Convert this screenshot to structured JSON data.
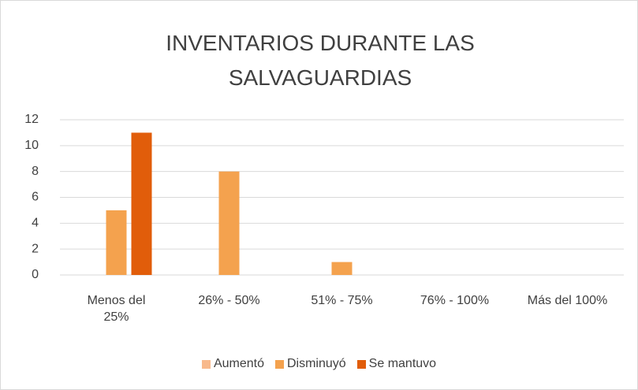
{
  "chart_data": {
    "type": "bar",
    "title": "INVENTARIOS DURANTE LAS SALVAGUARDIAS",
    "categories": [
      "Menos del 25%",
      "26% - 50%",
      "51% - 75%",
      "76% - 100%",
      "Más del 100%"
    ],
    "series": [
      {
        "name": "Aumentó",
        "color": "#f8b98c",
        "values": [
          0,
          0,
          0,
          0,
          0
        ]
      },
      {
        "name": "Disminuyó",
        "color": "#f4a24e",
        "values": [
          5,
          8,
          1,
          0,
          0
        ]
      },
      {
        "name": "Se mantuvo",
        "color": "#e15d0a",
        "values": [
          11,
          0,
          0,
          0,
          0
        ]
      }
    ],
    "ylim": [
      0,
      12
    ],
    "yticks": [
      0,
      2,
      4,
      6,
      8,
      10,
      12
    ],
    "grid": true,
    "legend": "bottom"
  }
}
